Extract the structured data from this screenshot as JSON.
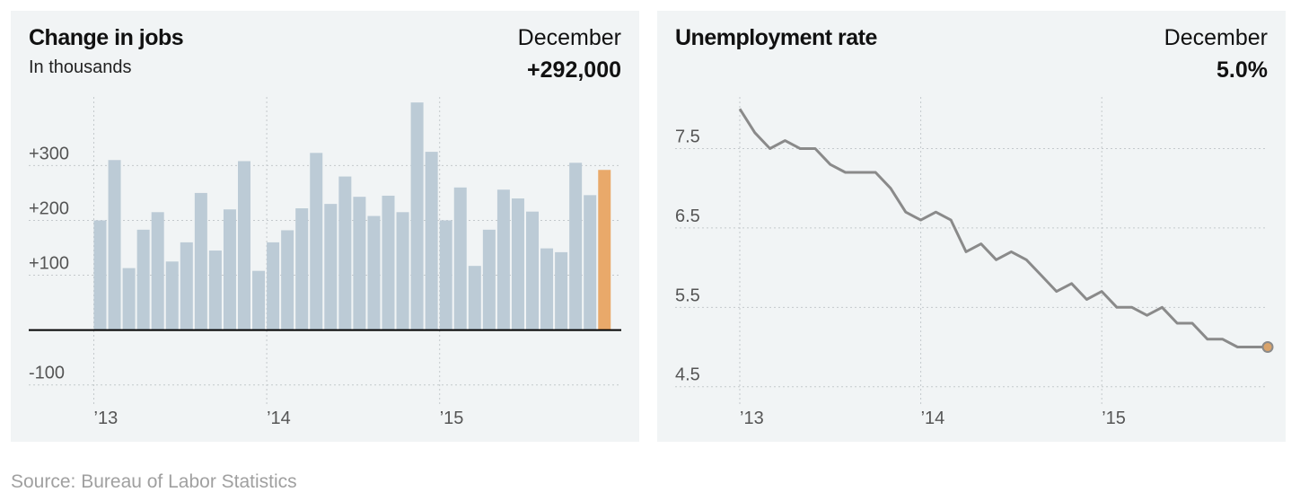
{
  "source": "Source: Bureau of Labor Statistics",
  "panels": {
    "jobs": {
      "title": "Change in jobs",
      "subtitle": "In thousands",
      "month": "December",
      "value": "+292,000"
    },
    "unemployment": {
      "title": "Unemployment rate",
      "month": "December",
      "value": "5.0%"
    }
  },
  "colors": {
    "bar": "#bccbd6",
    "highlight": "#e9a96a",
    "line": "#8a8a8a",
    "endpoint": "#d9a36b",
    "panel_bg": "#f1f4f5"
  },
  "chart_data": [
    {
      "type": "bar",
      "xlabel": "",
      "ylabel": "",
      "ylim": [
        -125,
        425
      ],
      "yticks": [
        -100,
        100,
        200,
        300
      ],
      "ytick_labels": [
        "-100",
        "+100",
        "+200",
        "+300"
      ],
      "xtick_labels": [
        "’13",
        "’14",
        "’15"
      ],
      "x": [
        "2013-01",
        "2013-02",
        "2013-03",
        "2013-04",
        "2013-05",
        "2013-06",
        "2013-07",
        "2013-08",
        "2013-09",
        "2013-10",
        "2013-11",
        "2013-12",
        "2014-01",
        "2014-02",
        "2014-03",
        "2014-04",
        "2014-05",
        "2014-06",
        "2014-07",
        "2014-08",
        "2014-09",
        "2014-10",
        "2014-11",
        "2014-12",
        "2015-01",
        "2015-02",
        "2015-03",
        "2015-04",
        "2015-05",
        "2015-06",
        "2015-07",
        "2015-08",
        "2015-09",
        "2015-10",
        "2015-11",
        "2015-12"
      ],
      "values": [
        200,
        310,
        113,
        183,
        215,
        125,
        160,
        250,
        145,
        220,
        308,
        108,
        160,
        182,
        222,
        323,
        230,
        280,
        243,
        208,
        245,
        215,
        415,
        325,
        200,
        260,
        117,
        183,
        256,
        240,
        216,
        149,
        142,
        305,
        246,
        292
      ],
      "highlight_index": 35,
      "grid": true
    },
    {
      "type": "line",
      "xlabel": "",
      "ylabel": "",
      "ylim": [
        4.35,
        8.15
      ],
      "yticks": [
        4.5,
        5.5,
        6.5,
        7.5
      ],
      "ytick_labels": [
        "4.5",
        "5.5",
        "6.5",
        "7.5"
      ],
      "xtick_labels": [
        "’13",
        "’14",
        "’15"
      ],
      "x": [
        "2013-01",
        "2013-02",
        "2013-03",
        "2013-04",
        "2013-05",
        "2013-06",
        "2013-07",
        "2013-08",
        "2013-09",
        "2013-10",
        "2013-11",
        "2013-12",
        "2014-01",
        "2014-02",
        "2014-03",
        "2014-04",
        "2014-05",
        "2014-06",
        "2014-07",
        "2014-08",
        "2014-09",
        "2014-10",
        "2014-11",
        "2014-12",
        "2015-01",
        "2015-02",
        "2015-03",
        "2015-04",
        "2015-05",
        "2015-06",
        "2015-07",
        "2015-08",
        "2015-09",
        "2015-10",
        "2015-11",
        "2015-12"
      ],
      "values": [
        8.0,
        7.7,
        7.5,
        7.6,
        7.5,
        7.5,
        7.3,
        7.2,
        7.2,
        7.2,
        7.0,
        6.7,
        6.6,
        6.7,
        6.6,
        6.2,
        6.3,
        6.1,
        6.2,
        6.1,
        5.9,
        5.7,
        5.8,
        5.6,
        5.7,
        5.5,
        5.5,
        5.4,
        5.5,
        5.3,
        5.3,
        5.1,
        5.1,
        5.0,
        5.0,
        5.0
      ],
      "grid": true
    }
  ]
}
